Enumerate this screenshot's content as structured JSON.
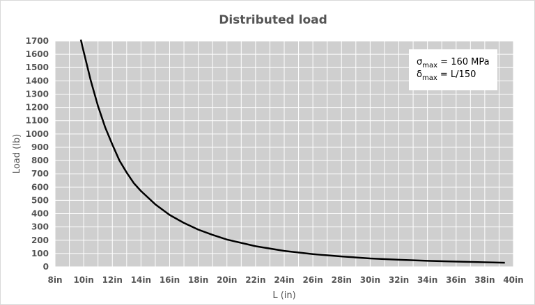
{
  "chart_data": {
    "type": "line",
    "title": "Distributed load",
    "xlabel": "L (in)",
    "ylabel": "Load (lb)",
    "xlim": [
      8,
      40
    ],
    "ylim": [
      0,
      1700
    ],
    "x_ticks": [
      8,
      10,
      12,
      14,
      16,
      18,
      20,
      22,
      24,
      26,
      28,
      30,
      32,
      34,
      36,
      38,
      40
    ],
    "x_tick_labels": [
      "8in",
      "10in",
      "12in",
      "14in",
      "16in",
      "18in",
      "20in",
      "22in",
      "24in",
      "26in",
      "28in",
      "30in",
      "32in",
      "34in",
      "36in",
      "38in",
      "40in"
    ],
    "y_ticks": [
      0,
      100,
      200,
      300,
      400,
      500,
      600,
      700,
      800,
      900,
      1000,
      1100,
      1200,
      1300,
      1400,
      1500,
      1600,
      1700
    ],
    "y_tick_labels": [
      "0",
      "100",
      "200",
      "300",
      "400",
      "500",
      "600",
      "700",
      "800",
      "900",
      "1000",
      "1100",
      "1200",
      "1300",
      "1400",
      "1500",
      "1600",
      "1700"
    ],
    "grid": true,
    "legend_position": "top-right",
    "annotation": {
      "line1": {
        "symbol": "σ",
        "sub": "max",
        "text": " = 160 MPa"
      },
      "line2": {
        "symbol": "δ",
        "sub": "max",
        "text": " = L/150"
      }
    },
    "series": [
      {
        "x": [
          9.8,
          10,
          10.5,
          11,
          11.5,
          12,
          12.5,
          13,
          13.5,
          14,
          15,
          16,
          17,
          18,
          19,
          20,
          22,
          24,
          26,
          28,
          30,
          32,
          34,
          36,
          38,
          39.4
        ],
        "y": [
          1710,
          1620,
          1400,
          1210,
          1050,
          920,
          800,
          710,
          630,
          570,
          470,
          390,
          330,
          280,
          240,
          205,
          155,
          120,
          95,
          78,
          63,
          53,
          45,
          39,
          34,
          31
        ],
        "color": "#000000"
      }
    ],
    "colors": {
      "plot_background": "#cfcfcf",
      "grid": "#ffffff",
      "line": "#000000",
      "text": "#555555",
      "legend_background": "#ffffff"
    }
  }
}
